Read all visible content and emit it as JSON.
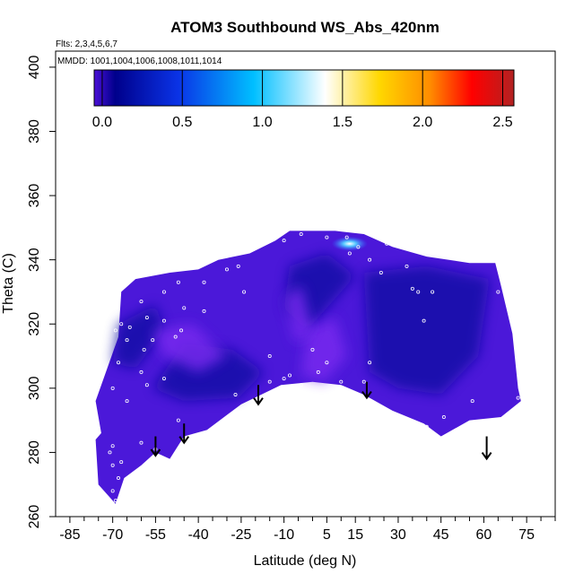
{
  "chart_data": {
    "type": "heatmap",
    "title": "ATOM3 Southbound WS_Abs_420nm",
    "notes": {
      "flights": "Flts: 2,3,4,5,6,7",
      "dates": "MMDD: 1001,1004,1006,1008,1011,1014"
    },
    "xlabel": "Latitude (deg N)",
    "ylabel": "Theta (C)",
    "xlim": [
      -90,
      85
    ],
    "ylim": [
      260,
      405
    ],
    "x_ticks": [
      -85,
      -70,
      -55,
      -40,
      -25,
      -10,
      5,
      15,
      30,
      45,
      60,
      75
    ],
    "x_minor_ticks": [
      -80,
      -75,
      -65,
      -60,
      -50,
      -45,
      -35,
      -30,
      -20,
      -15,
      -5,
      0,
      10,
      20,
      25,
      35,
      40,
      50,
      55,
      65,
      70,
      80,
      85
    ],
    "y_ticks": [
      260,
      280,
      300,
      320,
      340,
      360,
      380,
      400
    ],
    "colorbar": {
      "range": [
        -0.05,
        2.57
      ],
      "ticks": [
        0.0,
        0.5,
        1.0,
        1.5,
        2.0,
        2.5
      ],
      "tick_labels": [
        "0.0",
        "0.5",
        "1.0",
        "1.5",
        "2.0",
        "2.5"
      ],
      "colors": [
        "#4b0fd6",
        "#00008b",
        "#0a33e6",
        "#00bfff",
        "#ffffff",
        "#ffd700",
        "#ff8c00",
        "#ff0000",
        "#b22222"
      ],
      "color_stops": [
        0,
        0.05,
        0.2,
        0.38,
        0.55,
        0.68,
        0.8,
        0.9,
        1.0
      ]
    },
    "field_colors": {
      "base": "#4b18d9",
      "dark": "#0c0aa0",
      "light": "#7a2cf0",
      "peak": "#55aaff"
    },
    "region": [
      [
        -74,
        286
      ],
      [
        -76,
        296
      ],
      [
        -68,
        316
      ],
      [
        -67,
        330
      ],
      [
        -62,
        334
      ],
      [
        -50,
        336
      ],
      [
        -40,
        337
      ],
      [
        -33,
        340
      ],
      [
        -22,
        342
      ],
      [
        -13,
        346
      ],
      [
        -8,
        349
      ],
      [
        0,
        349
      ],
      [
        8,
        349
      ],
      [
        18,
        348
      ],
      [
        28,
        344
      ],
      [
        40,
        341
      ],
      [
        55,
        339
      ],
      [
        64,
        339
      ],
      [
        66,
        332
      ],
      [
        70,
        317
      ],
      [
        72,
        300
      ],
      [
        73,
        296
      ],
      [
        66,
        291
      ],
      [
        55,
        290
      ],
      [
        45,
        285
      ],
      [
        39,
        289
      ],
      [
        28,
        293
      ],
      [
        18,
        298
      ],
      [
        10,
        301
      ],
      [
        0,
        302
      ],
      [
        -11,
        301
      ],
      [
        -18,
        298
      ],
      [
        -25,
        295
      ],
      [
        -37,
        287
      ],
      [
        -45,
        285
      ],
      [
        -50,
        278
      ],
      [
        -55,
        280
      ],
      [
        -60,
        276
      ],
      [
        -66,
        272
      ],
      [
        -69,
        264
      ],
      [
        -75,
        270
      ],
      [
        -76,
        284
      ]
    ],
    "dark_regions": [
      [
        [
          -56,
          300
        ],
        [
          -45,
          314
        ],
        [
          -28,
          312
        ],
        [
          -17,
          305
        ],
        [
          -26,
          297
        ],
        [
          -45,
          296
        ]
      ],
      [
        [
          -8,
          338
        ],
        [
          5,
          342
        ],
        [
          15,
          335
        ],
        [
          -2,
          318
        ],
        [
          -10,
          325
        ]
      ],
      [
        [
          18,
          336
        ],
        [
          40,
          338
        ],
        [
          62,
          334
        ],
        [
          58,
          310
        ],
        [
          45,
          298
        ],
        [
          30,
          300
        ],
        [
          20,
          305
        ]
      ],
      [
        [
          -68,
          320
        ],
        [
          -55,
          326
        ],
        [
          -52,
          318
        ],
        [
          -62,
          306
        ],
        [
          -70,
          308
        ]
      ]
    ],
    "light_regions": [
      [
        [
          -2,
          318
        ],
        [
          8,
          322
        ],
        [
          12,
          310
        ],
        [
          4,
          302
        ],
        [
          -4,
          304
        ]
      ],
      [
        [
          -10,
          328
        ],
        [
          -4,
          332
        ],
        [
          0,
          318
        ],
        [
          -6,
          314
        ]
      ],
      [
        [
          -56,
          318
        ],
        [
          -42,
          320
        ],
        [
          -30,
          310
        ],
        [
          -40,
          305
        ],
        [
          -52,
          310
        ]
      ]
    ],
    "peak": {
      "lat": 13,
      "theta": 345,
      "value": 1.3
    },
    "obs_points": [
      [
        -68,
        262
      ],
      [
        -69,
        265
      ],
      [
        -70,
        268
      ],
      [
        -68,
        272
      ],
      [
        -67,
        277
      ],
      [
        -70,
        276
      ],
      [
        -71,
        280
      ],
      [
        -70,
        282
      ],
      [
        -60,
        283
      ],
      [
        -55,
        281
      ],
      [
        -47,
        290
      ],
      [
        -80,
        295
      ],
      [
        -65,
        296
      ],
      [
        -58,
        301
      ],
      [
        -52,
        303
      ],
      [
        -60,
        305
      ],
      [
        -68,
        308
      ],
      [
        -59,
        312
      ],
      [
        -56,
        315
      ],
      [
        -48,
        316
      ],
      [
        -65,
        315
      ],
      [
        -67,
        320
      ],
      [
        -69,
        318
      ],
      [
        -58,
        322
      ],
      [
        -52,
        321
      ],
      [
        -45,
        325
      ],
      [
        -38,
        324
      ],
      [
        -46,
        318
      ],
      [
        -52,
        330
      ],
      [
        -47,
        333
      ],
      [
        -38,
        333
      ],
      [
        -30,
        337
      ],
      [
        -26,
        338
      ],
      [
        -24,
        330
      ],
      [
        -27,
        298
      ],
      [
        -20,
        290
      ],
      [
        -15,
        302
      ],
      [
        -10,
        303
      ],
      [
        -8,
        304
      ],
      [
        -4,
        301
      ],
      [
        2,
        305
      ],
      [
        5,
        308
      ],
      [
        -15,
        310
      ],
      [
        0,
        312
      ],
      [
        10,
        302
      ],
      [
        18,
        302
      ],
      [
        20,
        308
      ],
      [
        -10,
        346
      ],
      [
        -4,
        348
      ],
      [
        5,
        347
      ],
      [
        12,
        347
      ],
      [
        16,
        344
      ],
      [
        13,
        342
      ],
      [
        20,
        340
      ],
      [
        24,
        336
      ],
      [
        26,
        345
      ],
      [
        33,
        338
      ],
      [
        35,
        331
      ],
      [
        37,
        330
      ],
      [
        39,
        321
      ],
      [
        42,
        330
      ],
      [
        46,
        291
      ],
      [
        40,
        288
      ],
      [
        56,
        296
      ],
      [
        65,
        330
      ],
      [
        68,
        339
      ],
      [
        72,
        297
      ],
      [
        -64,
        319
      ],
      [
        -60,
        327
      ],
      [
        -70,
        300
      ]
    ],
    "arrows": [
      {
        "lat": -55,
        "theta_top": 285,
        "theta_tip": 279
      },
      {
        "lat": -45,
        "theta_top": 289,
        "theta_tip": 283
      },
      {
        "lat": -19,
        "theta_top": 301,
        "theta_tip": 295
      },
      {
        "lat": 19,
        "theta_top": 302,
        "theta_tip": 297
      },
      {
        "lat": 61,
        "theta_top": 285,
        "theta_tip": 278
      }
    ]
  }
}
